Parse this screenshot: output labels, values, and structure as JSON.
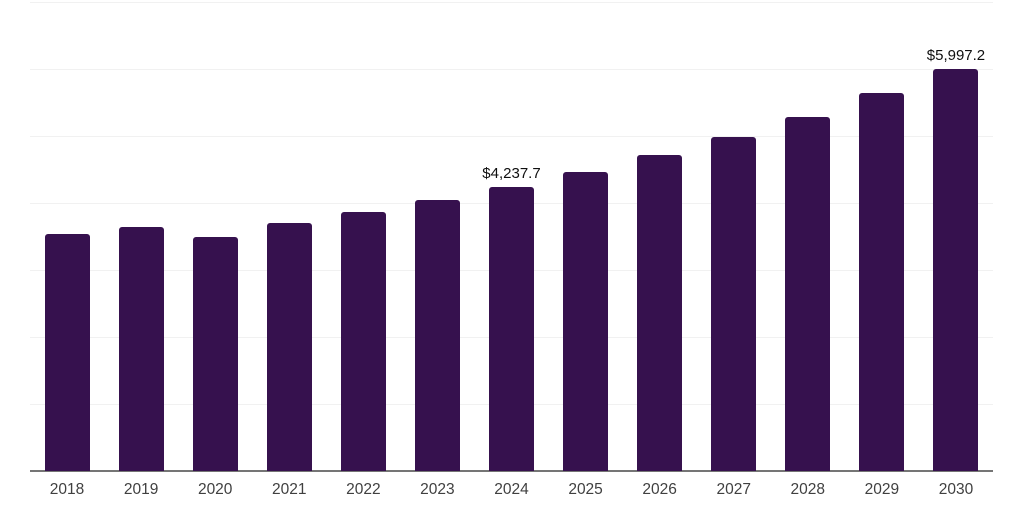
{
  "chart_data": {
    "type": "bar",
    "title": "",
    "xlabel": "",
    "ylabel": "",
    "categories": [
      "2018",
      "2019",
      "2020",
      "2021",
      "2022",
      "2023",
      "2024",
      "2025",
      "2026",
      "2027",
      "2028",
      "2029",
      "2030"
    ],
    "values": [
      3530,
      3640,
      3500,
      3695,
      3860,
      4040,
      4237.7,
      4470,
      4720,
      4980,
      5290,
      5640,
      5997.2
    ],
    "data_labels": {
      "2024": "$4,237.7",
      "2030": "$5,997.2"
    },
    "ylim": [
      0,
      7000
    ],
    "gridline_step": 1000,
    "grid": true,
    "legend_position": "none",
    "colors": {
      "bar": "#36114E",
      "gridline": "#f1f1f1",
      "axis": "#757575",
      "tick_label": "#404040",
      "data_label": "#0f0f0f",
      "background": "#ffffff"
    }
  }
}
